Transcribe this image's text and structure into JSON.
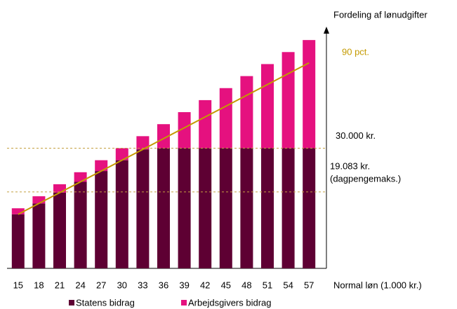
{
  "chart_data": {
    "type": "stacked_bar",
    "ylabel": "Fordeling af lønudgifter",
    "xlabel": "Normal løn (1.000 kr.)",
    "categories": [
      15,
      18,
      21,
      24,
      27,
      30,
      33,
      36,
      39,
      42,
      45,
      48,
      51,
      54,
      57
    ],
    "series": [
      {
        "name": "Statens bidrag",
        "color": "#5e0033",
        "values": [
          13.5,
          16.2,
          18.9,
          21.6,
          24.3,
          27,
          29.7,
          30,
          30,
          30,
          30,
          30,
          30,
          30,
          30
        ]
      },
      {
        "name": "Arbejdsgivers bidrag",
        "color": "#e5117f",
        "values": [
          1.5,
          1.8,
          2.1,
          2.4,
          2.7,
          3,
          3.3,
          6,
          9,
          12,
          15,
          18,
          21,
          24,
          27
        ]
      }
    ],
    "line": {
      "label": "90 pct.",
      "color": "#c49a00",
      "values": [
        13.5,
        16.2,
        18.9,
        21.6,
        24.3,
        27,
        29.7,
        32.4,
        35.1,
        37.8,
        40.5,
        43.2,
        45.9,
        48.6,
        51.3
      ]
    },
    "reference_lines": [
      {
        "value": 30,
        "label": "30.000 kr.",
        "color": "#c4a040"
      },
      {
        "value": 19.083,
        "label": "19.083 kr.",
        "sublabel": "(dagpengemaks.)",
        "color": "#c4a040"
      }
    ],
    "ylim": [
      0,
      60
    ]
  }
}
